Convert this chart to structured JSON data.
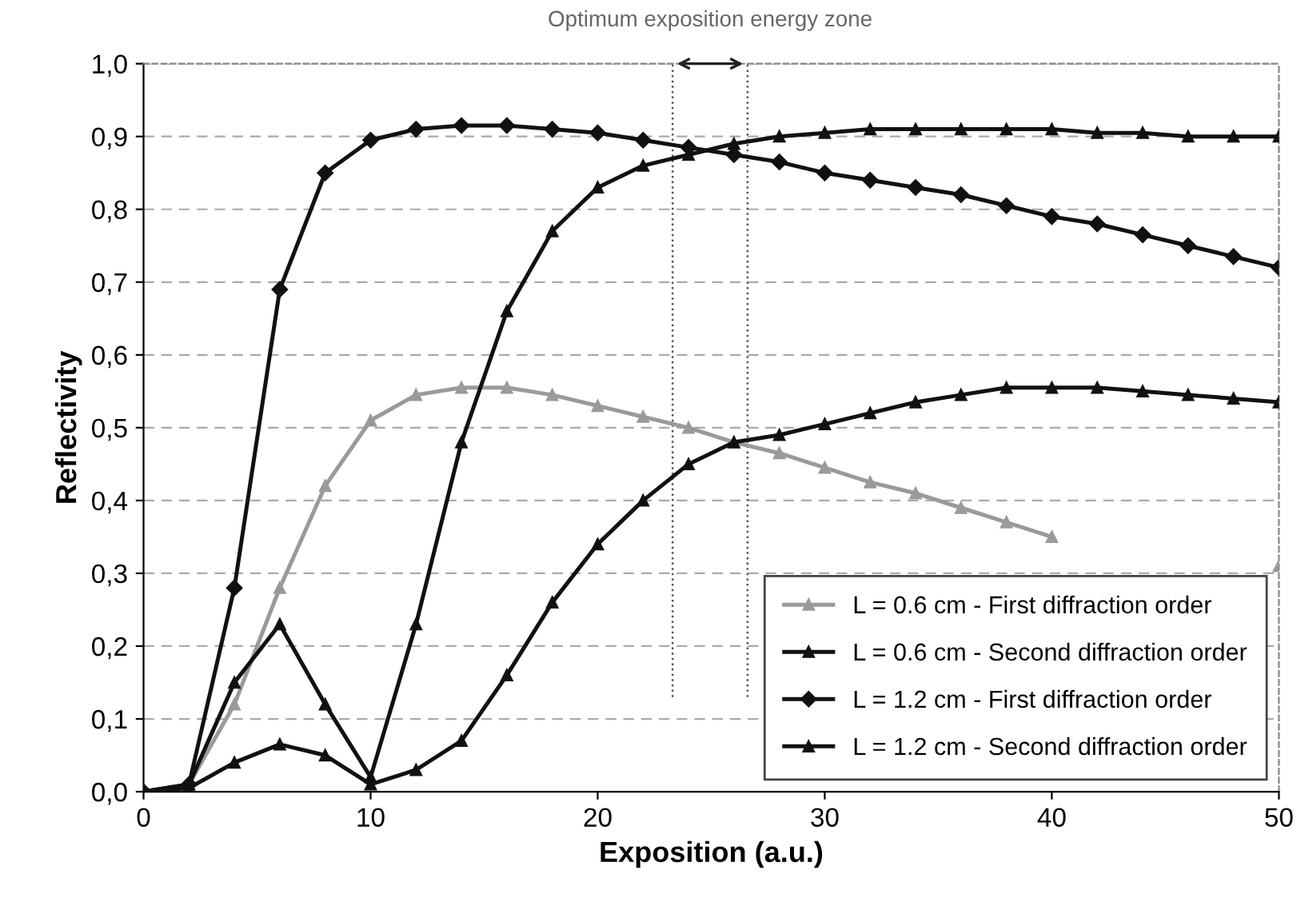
{
  "chart_data": {
    "type": "line",
    "xlabel": "Exposition (a.u.)",
    "ylabel": "Reflectivity",
    "x": [
      0,
      2,
      4,
      6,
      8,
      10,
      12,
      14,
      16,
      18,
      20,
      22,
      24,
      26,
      28,
      30,
      32,
      34,
      36,
      38,
      40,
      42,
      44,
      46,
      48,
      50
    ],
    "series": [
      {
        "name": "L = 0.6 cm - First diffraction order",
        "color": "#9a9a9a",
        "marker": "triangle",
        "values": [
          0,
          0.01,
          0.12,
          0.28,
          0.42,
          0.51,
          0.545,
          0.555,
          0.555,
          0.545,
          0.53,
          0.515,
          0.5,
          0.48,
          0.465,
          0.445,
          0.425,
          0.41,
          0.39,
          0.37,
          0.35,
          null,
          null,
          null,
          null,
          0.31
        ]
      },
      {
        "name": "L = 0.6 cm - Second diffraction order",
        "color": "#111111",
        "marker": "triangle",
        "values": [
          0,
          0.01,
          0.15,
          0.23,
          0.12,
          0.02,
          0.23,
          0.48,
          0.66,
          0.77,
          0.83,
          0.86,
          0.875,
          0.89,
          0.9,
          0.905,
          0.91,
          0.91,
          0.91,
          0.91,
          0.91,
          0.905,
          0.905,
          0.9,
          0.9,
          0.9
        ]
      },
      {
        "name": "L = 1.2 cm - First diffraction order",
        "color": "#111111",
        "marker": "diamond",
        "values": [
          0,
          0.01,
          0.28,
          0.69,
          0.85,
          0.895,
          0.91,
          0.915,
          0.915,
          0.91,
          0.905,
          0.895,
          0.885,
          0.875,
          0.865,
          0.85,
          0.84,
          0.83,
          0.82,
          0.805,
          0.79,
          0.78,
          0.765,
          0.75,
          0.735,
          0.72
        ]
      },
      {
        "name": "L = 1.2 cm - Second diffraction order",
        "color": "#111111",
        "marker": "triangle",
        "values": [
          0,
          0.005,
          0.04,
          0.065,
          0.05,
          0.01,
          0.03,
          0.07,
          0.16,
          0.26,
          0.34,
          0.4,
          0.45,
          0.48,
          0.49,
          0.505,
          0.52,
          0.535,
          0.545,
          0.555,
          0.555,
          0.555,
          0.55,
          0.545,
          0.54,
          0.535
        ]
      }
    ],
    "xlim": [
      0,
      50
    ],
    "xticks": [
      0,
      10,
      20,
      30,
      40,
      50
    ],
    "ylim": [
      0,
      1
    ],
    "yticks": [
      {
        "value": 0,
        "label": "0,0"
      },
      {
        "value": 0.1,
        "label": "0,1"
      },
      {
        "value": 0.2,
        "label": "0,2"
      },
      {
        "value": 0.3,
        "label": "0,3"
      },
      {
        "value": 0.4,
        "label": "0,4"
      },
      {
        "value": 0.5,
        "label": "0,5"
      },
      {
        "value": 0.6,
        "label": "0,6"
      },
      {
        "value": 0.7,
        "label": "0,7"
      },
      {
        "value": 0.8,
        "label": "0,8"
      },
      {
        "value": 0.9,
        "label": "0,9"
      },
      {
        "value": 1,
        "label": "1,0"
      }
    ],
    "ref_lines": [
      {
        "axis": "x",
        "value": 23.3,
        "color": "#555555",
        "line_style": "dotted"
      },
      {
        "axis": "x",
        "value": 26.6,
        "color": "#555555",
        "line_style": "dotted"
      }
    ],
    "annotations": [
      "Optimum exposition energy zone"
    ],
    "grid": "y",
    "legend": "bottom right",
    "line_style": "solid"
  }
}
